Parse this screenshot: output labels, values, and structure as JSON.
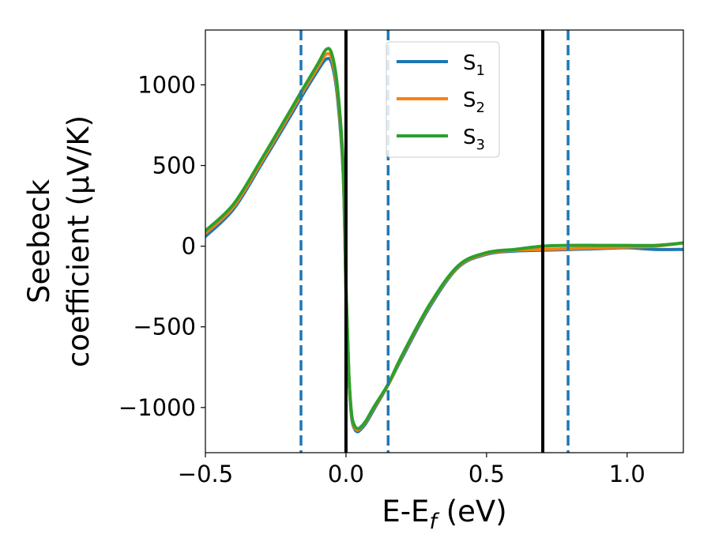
{
  "chart_data": {
    "type": "line",
    "title": "",
    "xlabel": "E-E",
    "xlabel_sub": "f",
    "xlabel_unit": " (eV)",
    "ylabel_line1": "Seebeck",
    "ylabel_line2": "coefficient  (μV/K)",
    "xlim": [
      -0.5,
      1.2
    ],
    "ylim": [
      -1280,
      1340
    ],
    "xticks": [
      -0.5,
      0.0,
      0.5,
      1.0
    ],
    "xtick_labels": [
      "−0.5",
      "0.0",
      "0.5",
      "1.0"
    ],
    "yticks": [
      -1000,
      -500,
      0,
      500,
      1000
    ],
    "ytick_labels": [
      "−1000",
      "−500",
      "0",
      "500",
      "1000"
    ],
    "grid": false,
    "legend_position": "top-center",
    "vlines_solid": [
      0.0,
      0.7
    ],
    "vlines_dashed": [
      -0.16,
      0.15,
      0.79
    ],
    "x": [
      -0.5,
      -0.4,
      -0.3,
      -0.2,
      -0.16,
      -0.1,
      -0.07,
      -0.05,
      -0.03,
      -0.01,
      0.0,
      0.01,
      0.02,
      0.03,
      0.04,
      0.05,
      0.07,
      0.1,
      0.15,
      0.2,
      0.3,
      0.4,
      0.5,
      0.6,
      0.7,
      0.8,
      0.9,
      1.0,
      1.1,
      1.2
    ],
    "series": [
      {
        "name": "S",
        "name_sub": "1",
        "color": "#1f77b4",
        "values": [
          60,
          230,
          510,
          800,
          920,
          1090,
          1160,
          1130,
          920,
          450,
          -280,
          -800,
          -1060,
          -1130,
          -1150,
          -1140,
          -1100,
          -1010,
          -860,
          -690,
          -370,
          -130,
          -50,
          -30,
          -25,
          -20,
          -15,
          -10,
          -20,
          -20
        ]
      },
      {
        "name": "S",
        "name_sub": "2",
        "color": "#ff7f0e",
        "values": [
          80,
          245,
          525,
          820,
          940,
          1110,
          1190,
          1160,
          950,
          480,
          -260,
          -790,
          -1050,
          -1120,
          -1140,
          -1130,
          -1090,
          -1000,
          -860,
          -680,
          -360,
          -125,
          -45,
          -25,
          -20,
          -15,
          -10,
          -5,
          0,
          20
        ]
      },
      {
        "name": "S",
        "name_sub": "3",
        "color": "#2ca02c",
        "values": [
          95,
          260,
          540,
          835,
          955,
          1130,
          1220,
          1190,
          980,
          500,
          -250,
          -780,
          -1040,
          -1110,
          -1130,
          -1125,
          -1085,
          -995,
          -855,
          -675,
          -355,
          -120,
          -40,
          -20,
          0,
          5,
          5,
          5,
          5,
          20
        ]
      }
    ]
  }
}
